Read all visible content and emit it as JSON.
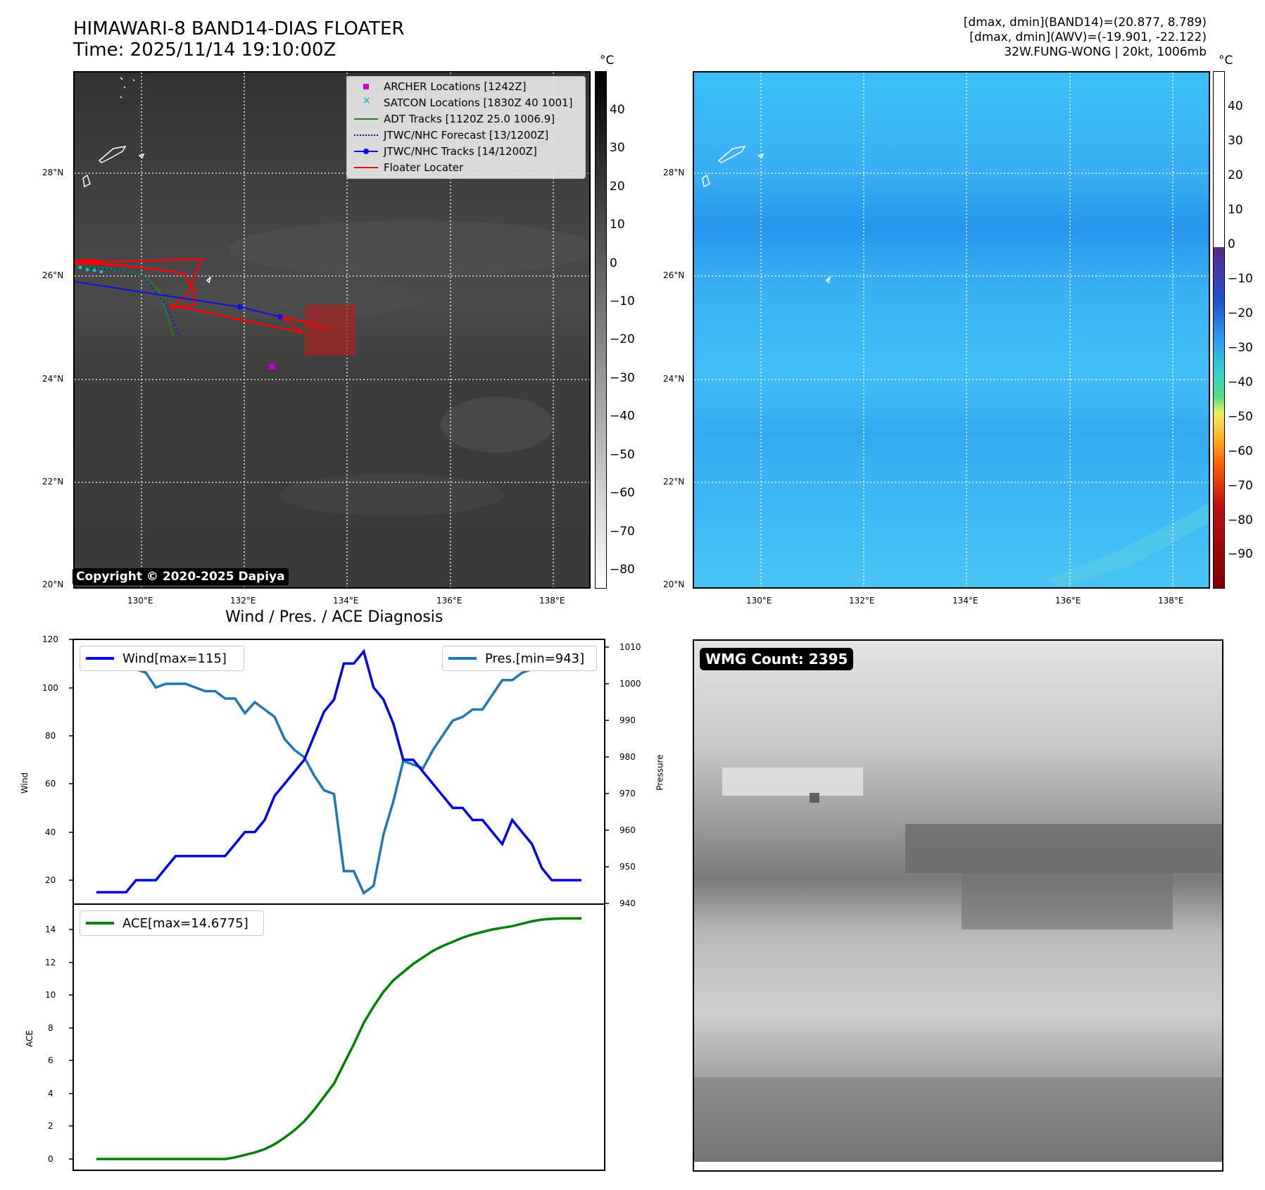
{
  "header": {
    "title": "HIMAWARI-8 BAND14-DIAS FLOATER",
    "time": "Time: 2025/11/14 19:10:00Z",
    "dmax_band14": "[dmax, dmin](BAND14)=(20.877, 8.789)",
    "dmax_awv": "[dmax, dmin](AWV)=(-19.901, -22.122)",
    "storm": "32W.FUNG-WONG | 20kt, 1006mb"
  },
  "map_axes": {
    "lat_labels": [
      "28°N",
      "26°N",
      "24°N",
      "22°N",
      "20°N"
    ],
    "lon_labels": [
      "130°E",
      "132°E",
      "134°E",
      "136°E",
      "138°E"
    ],
    "unit": "°C"
  },
  "ir_panel": {
    "legend": [
      {
        "label": "ARCHER Locations [1242Z]",
        "color": "#c000c0"
      },
      {
        "label": "SATCON Locations [1830Z 40 1001]",
        "color": "#20c0c0"
      },
      {
        "label": "ADT Tracks [1120Z 25.0 1006.9]",
        "color": "#208020"
      },
      {
        "label": "JTWC/NHC Forecast [13/1200Z]",
        "color": "#1010e0"
      },
      {
        "label": "JTWC/NHC Tracks [14/1200Z]",
        "color": "#1010e0"
      },
      {
        "label": "Floater Locater",
        "color": "#ff0000"
      }
    ],
    "colorbar_ticks": [
      "40",
      "30",
      "20",
      "10",
      "0",
      "−10",
      "−20",
      "−30",
      "−40",
      "−50",
      "−60",
      "−70",
      "−80"
    ],
    "copyright": "Copyright © 2020-2025 Dapiya"
  },
  "wv_panel": {
    "colorbar_ticks": [
      "40",
      "30",
      "20",
      "10",
      "0",
      "−10",
      "−20",
      "−30",
      "−40",
      "−50",
      "−60",
      "−70",
      "−80",
      "−90"
    ]
  },
  "diagnosis": {
    "title": "Wind / Pres. / ACE Diagnosis",
    "wind_axis_label": "Wind",
    "pres_axis_label": "Pressure",
    "ace_axis_label": "ACE",
    "wind_legend": "Wind[max=115]",
    "pres_legend": "Pres.[min=943]",
    "ace_legend": "ACE[max=14.6775]",
    "wind_ticks": [
      "120",
      "100",
      "80",
      "60",
      "40",
      "20"
    ],
    "pres_ticks": [
      "1010",
      "1000",
      "990",
      "980",
      "970",
      "960",
      "950",
      "940"
    ],
    "ace_ticks": [
      "14",
      "12",
      "10",
      "8",
      "6",
      "4",
      "2",
      "0"
    ]
  },
  "wmg": {
    "label": "WMG Count: 2395"
  },
  "chart_data": [
    {
      "type": "line",
      "title": "Wind / Pres. / ACE Diagnosis",
      "xlabel": "",
      "ylabel": "Wind",
      "ylim": [
        10,
        120
      ],
      "series": [
        {
          "name": "Wind[max=115]",
          "color": "#0000ee",
          "values": [
            15,
            15,
            15,
            15,
            20,
            20,
            20,
            25,
            30,
            30,
            30,
            30,
            30,
            30,
            35,
            40,
            40,
            45,
            55,
            60,
            65,
            70,
            80,
            90,
            95,
            110,
            110,
            115,
            100,
            95,
            85,
            70,
            70,
            65,
            60,
            55,
            50,
            50,
            45,
            45,
            40,
            35,
            45,
            40,
            35,
            25,
            20,
            20,
            20,
            20
          ]
        }
      ]
    },
    {
      "type": "line",
      "ylabel": "Pressure",
      "ylim": [
        940,
        1010
      ],
      "series": [
        {
          "name": "Pres.[min=943]",
          "color": "#1f77b4",
          "values": [
            1007,
            1005,
            1005,
            1005,
            1004,
            1003,
            999,
            1000,
            1000,
            1000,
            999,
            998,
            998,
            996,
            996,
            992,
            995,
            993,
            991,
            985,
            982,
            980,
            975,
            971,
            970,
            949,
            949,
            943,
            945,
            959,
            968,
            979,
            978,
            977,
            982,
            986,
            990,
            991,
            993,
            993,
            997,
            1001,
            1001,
            1003,
            1004,
            1005,
            1006,
            1007,
            1007,
            1007
          ]
        }
      ]
    },
    {
      "type": "line",
      "ylabel": "ACE",
      "ylim": [
        -0.8,
        15.2
      ],
      "series": [
        {
          "name": "ACE[max=14.6775]",
          "color": "#008000",
          "values": [
            0,
            0,
            0,
            0,
            0,
            0,
            0,
            0,
            0,
            0,
            0,
            0,
            0,
            0,
            0.1,
            0.25,
            0.4,
            0.6,
            0.9,
            1.3,
            1.75,
            2.3,
            3.0,
            3.8,
            4.6,
            5.8,
            7.0,
            8.3,
            9.3,
            10.2,
            10.9,
            11.4,
            11.9,
            12.3,
            12.7,
            13.0,
            13.25,
            13.5,
            13.7,
            13.85,
            14.0,
            14.1,
            14.2,
            14.35,
            14.5,
            14.6,
            14.65,
            14.6775,
            14.6775,
            14.6775
          ]
        }
      ]
    }
  ]
}
